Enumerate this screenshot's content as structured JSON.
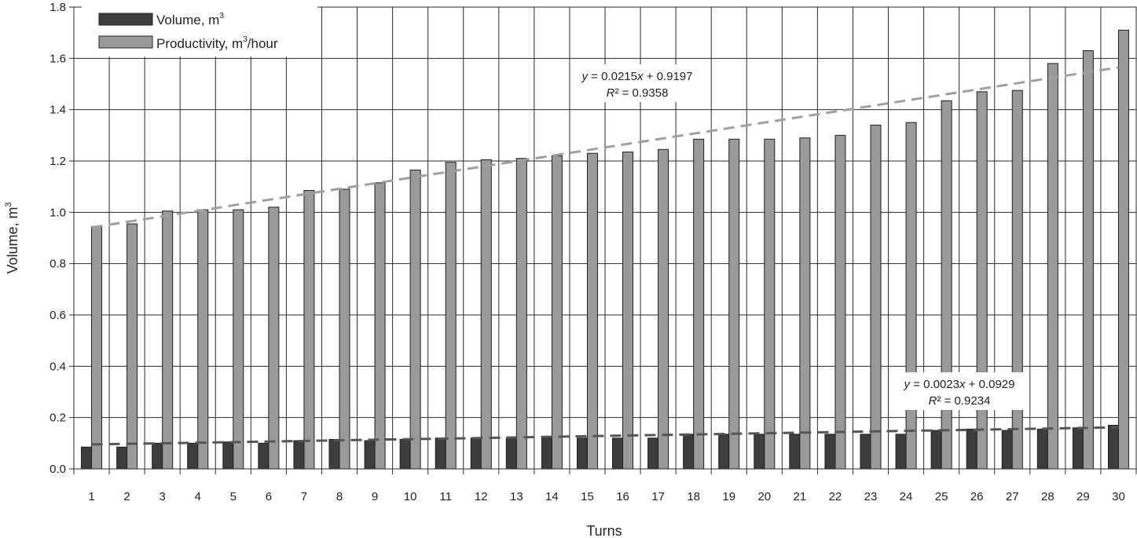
{
  "chart_data": {
    "type": "bar",
    "xlabel": "Turns",
    "ylabel": "Volume, m",
    "ylabel_sup": "3",
    "ylim": [
      0,
      1.8
    ],
    "yticks": [
      "0.0",
      "0.2",
      "0.4",
      "0.6",
      "0.8",
      "1.0",
      "1.2",
      "1.4",
      "1.6",
      "1.8"
    ],
    "grid": true,
    "legend_position": "top-left",
    "categories": [
      "1",
      "2",
      "3",
      "4",
      "5",
      "6",
      "7",
      "8",
      "9",
      "10",
      "11",
      "12",
      "13",
      "14",
      "15",
      "16",
      "17",
      "18",
      "19",
      "20",
      "21",
      "22",
      "23",
      "24",
      "25",
      "26",
      "27",
      "28",
      "29",
      "30"
    ],
    "series": [
      {
        "name": "Volume, m",
        "name_sup": "3",
        "color": "#3d3d3d",
        "values": [
          0.085,
          0.085,
          0.1,
          0.1,
          0.105,
          0.1,
          0.11,
          0.115,
          0.11,
          0.115,
          0.12,
          0.12,
          0.12,
          0.12,
          0.12,
          0.12,
          0.12,
          0.135,
          0.135,
          0.135,
          0.135,
          0.135,
          0.135,
          0.135,
          0.15,
          0.155,
          0.15,
          0.155,
          0.16,
          0.17
        ]
      },
      {
        "name": "Productivity, m",
        "name_sup": "3",
        "name_suffix": "/hour",
        "color": "#9a9a9a",
        "values": [
          0.945,
          0.955,
          1.005,
          1.01,
          1.01,
          1.02,
          1.085,
          1.09,
          1.115,
          1.165,
          1.195,
          1.205,
          1.21,
          1.22,
          1.23,
          1.235,
          1.245,
          1.285,
          1.285,
          1.285,
          1.29,
          1.3,
          1.34,
          1.35,
          1.435,
          1.47,
          1.475,
          1.58,
          1.63,
          1.71
        ]
      }
    ],
    "trendlines": [
      {
        "series": "Productivity",
        "slope": 0.0215,
        "intercept": 0.9197,
        "color": "#a0a0a0",
        "equation_y": "y",
        "equation_mid": " = 0.0215",
        "equation_x": "x",
        "equation_end": " + 0.9197",
        "r2_label": "R",
        "r2_value": "² = 0.9358"
      },
      {
        "series": "Volume",
        "slope": 0.0023,
        "intercept": 0.0929,
        "color": "#555555",
        "equation_y": "y",
        "equation_mid": " = 0.0023",
        "equation_x": "x",
        "equation_end": " + 0.0929",
        "r2_label": "R",
        "r2_value": "² = 0.9234"
      }
    ]
  }
}
